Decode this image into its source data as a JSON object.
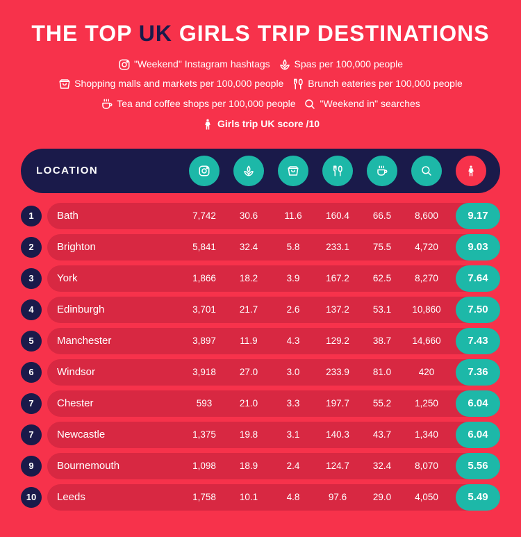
{
  "title_pre": "THE TOP ",
  "title_accent": "UK",
  "title_post": " GIRLS TRIP DESTINATIONS",
  "colors": {
    "background": "#f7324b",
    "dark": "#1a1a4a",
    "teal": "#1db8a8",
    "row_bg": "#d82842",
    "text": "#ffffff"
  },
  "legend": [
    {
      "icon": "instagram",
      "label": "\"Weekend\" Instagram hashtags"
    },
    {
      "icon": "spa",
      "label": "Spas per 100,000 people"
    },
    {
      "icon": "shopping",
      "label": "Shopping malls and markets per 100,000 people"
    },
    {
      "icon": "brunch",
      "label": "Brunch eateries per 100,000 people"
    },
    {
      "icon": "tea",
      "label": "Tea and coffee shops per 100,000 people"
    },
    {
      "icon": "search",
      "label": "\"Weekend in\" searches"
    },
    {
      "icon": "person",
      "label": "Girls trip UK score /10",
      "bold": true
    }
  ],
  "header": {
    "location_label": "LOCATION",
    "icons": [
      "instagram",
      "spa",
      "shopping",
      "brunch",
      "tea",
      "search",
      "person"
    ]
  },
  "rows": [
    {
      "rank": "1",
      "location": "Bath",
      "values": [
        "7,742",
        "30.6",
        "11.6",
        "160.4",
        "66.5",
        "8,600"
      ],
      "score": "9.17"
    },
    {
      "rank": "2",
      "location": "Brighton",
      "values": [
        "5,841",
        "32.4",
        "5.8",
        "233.1",
        "75.5",
        "4,720"
      ],
      "score": "9.03"
    },
    {
      "rank": "3",
      "location": "York",
      "values": [
        "1,866",
        "18.2",
        "3.9",
        "167.2",
        "62.5",
        "8,270"
      ],
      "score": "7.64"
    },
    {
      "rank": "4",
      "location": "Edinburgh",
      "values": [
        "3,701",
        "21.7",
        "2.6",
        "137.2",
        "53.1",
        "10,860"
      ],
      "score": "7.50"
    },
    {
      "rank": "5",
      "location": "Manchester",
      "values": [
        "3,897",
        "11.9",
        "4.3",
        "129.2",
        "38.7",
        "14,660"
      ],
      "score": "7.43"
    },
    {
      "rank": "6",
      "location": "Windsor",
      "values": [
        "3,918",
        "27.0",
        "3.0",
        "233.9",
        "81.0",
        "420"
      ],
      "score": "7.36"
    },
    {
      "rank": "7",
      "location": "Chester",
      "values": [
        "593",
        "21.0",
        "3.3",
        "197.7",
        "55.2",
        "1,250"
      ],
      "score": "6.04"
    },
    {
      "rank": "7",
      "location": "Newcastle",
      "values": [
        "1,375",
        "19.8",
        "3.1",
        "140.3",
        "43.7",
        "1,340"
      ],
      "score": "6.04"
    },
    {
      "rank": "9",
      "location": "Bournemouth",
      "values": [
        "1,098",
        "18.9",
        "2.4",
        "124.7",
        "32.4",
        "8,070"
      ],
      "score": "5.56"
    },
    {
      "rank": "10",
      "location": "Leeds",
      "values": [
        "1,758",
        "10.1",
        "4.8",
        "97.6",
        "29.0",
        "4,050"
      ],
      "score": "5.49"
    }
  ]
}
